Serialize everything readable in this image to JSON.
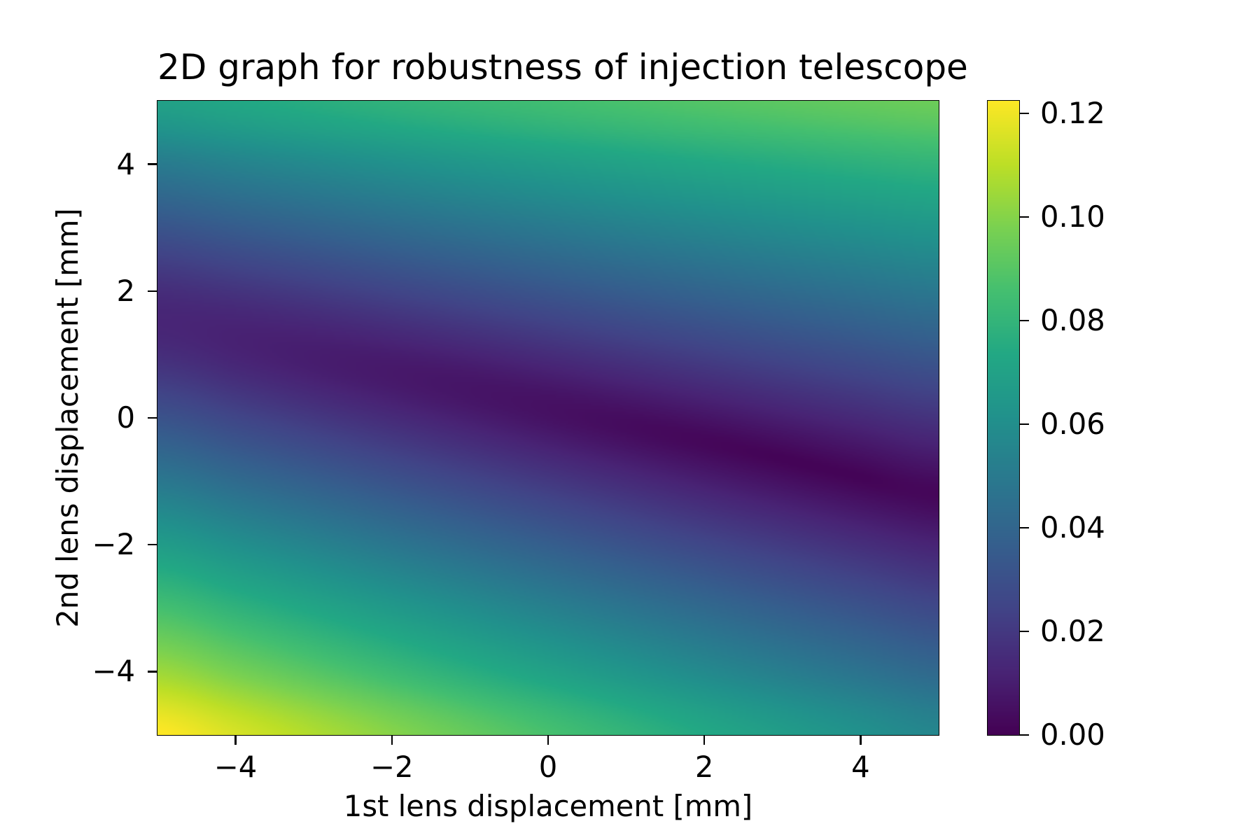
{
  "chart_data": {
    "type": "heatmap",
    "title": "2D graph for robustness of injection telescope",
    "xlabel": "1st lens displacement [mm]",
    "ylabel": "2nd lens displacement [mm]",
    "xlim": [
      -5,
      5
    ],
    "ylim": [
      -5,
      5
    ],
    "grid": false,
    "colormap": "viridis",
    "colormap_stops": [
      "#440154",
      "#482475",
      "#414487",
      "#355f8d",
      "#2a788e",
      "#21918c",
      "#22a884",
      "#44bf70",
      "#7ad151",
      "#bddf26",
      "#fde725"
    ],
    "vmin": 0.0,
    "vmax": 0.1224,
    "xticks": [
      -4,
      -2,
      0,
      2,
      4
    ],
    "xtick_labels": [
      "−4",
      "−2",
      "0",
      "2",
      "4"
    ],
    "yticks": [
      -4,
      -2,
      0,
      2,
      4
    ],
    "ytick_labels": [
      "−4",
      "−2",
      "0",
      "2",
      "4"
    ],
    "colorbar": {
      "ticks": [
        0.0,
        0.02,
        0.04,
        0.06,
        0.08,
        0.1,
        0.12
      ],
      "tick_labels": [
        "0.00",
        "0.02",
        "0.04",
        "0.06",
        "0.08",
        "0.10",
        "0.12"
      ],
      "placement": "right"
    },
    "grid_x": [
      -5,
      -4,
      -3,
      -2,
      -1,
      0,
      1,
      2,
      3,
      4,
      5
    ],
    "grid_y": [
      5,
      4,
      3,
      2,
      1,
      0,
      -1,
      -2,
      -3,
      -4,
      -5
    ],
    "z": [
      [
        0.0696,
        0.073,
        0.0762,
        0.0792,
        0.082,
        0.0847,
        0.0871,
        0.0894,
        0.0914,
        0.0933,
        0.0949
      ],
      [
        0.0504,
        0.0541,
        0.0576,
        0.061,
        0.0642,
        0.0672,
        0.0701,
        0.0728,
        0.0752,
        0.0775,
        0.0795
      ],
      [
        0.0318,
        0.0355,
        0.0392,
        0.0429,
        0.0464,
        0.0498,
        0.0531,
        0.0561,
        0.059,
        0.0617,
        0.0642
      ],
      [
        0.0159,
        0.0183,
        0.0215,
        0.0251,
        0.0288,
        0.0325,
        0.0361,
        0.0395,
        0.0428,
        0.0459,
        0.0489
      ],
      [
        0.0161,
        0.0122,
        0.0098,
        0.0099,
        0.0121,
        0.0155,
        0.0192,
        0.0229,
        0.0266,
        0.0301,
        0.0335
      ],
      [
        0.0313,
        0.0256,
        0.0201,
        0.015,
        0.0102,
        0.006,
        0.0042,
        0.0066,
        0.0104,
        0.0144,
        0.0182
      ],
      [
        0.049,
        0.0428,
        0.0369,
        0.0311,
        0.0256,
        0.0203,
        0.0152,
        0.0103,
        0.0056,
        0.0015,
        0.0035
      ],
      [
        0.0673,
        0.0607,
        0.0544,
        0.0482,
        0.0423,
        0.0367,
        0.0312,
        0.026,
        0.0211,
        0.0164,
        0.0122
      ],
      [
        0.0858,
        0.0788,
        0.0721,
        0.0656,
        0.0593,
        0.0532,
        0.0474,
        0.0419,
        0.0365,
        0.0315,
        0.0268
      ],
      [
        0.1044,
        0.097,
        0.0899,
        0.083,
        0.0763,
        0.0699,
        0.0637,
        0.0577,
        0.052,
        0.0466,
        0.0414
      ],
      [
        0.1231,
        0.1153,
        0.1078,
        0.1005,
        0.0934,
        0.0866,
        0.08,
        0.0736,
        0.0675,
        0.0616,
        0.056
      ]
    ]
  }
}
